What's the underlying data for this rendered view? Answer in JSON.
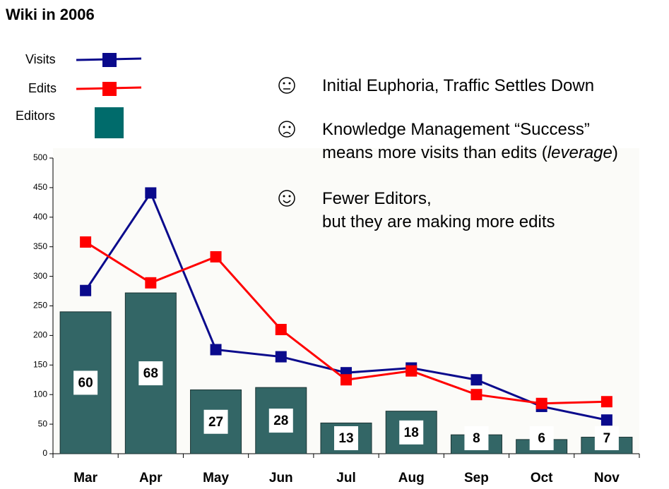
{
  "chart_data": {
    "type": "bar-line",
    "title": "Wiki in 2006",
    "categories": [
      "Mar",
      "Apr",
      "May",
      "Jun",
      "Jul",
      "Aug",
      "Sep",
      "Oct",
      "Nov"
    ],
    "series": [
      {
        "name": "Visits",
        "type": "line",
        "color": "#0a0a8c",
        "values": [
          276,
          441,
          176,
          164,
          137,
          145,
          125,
          80,
          57
        ]
      },
      {
        "name": "Edits",
        "type": "line",
        "color": "#ff0000",
        "values": [
          358,
          289,
          333,
          210,
          125,
          140,
          100,
          85,
          88
        ]
      },
      {
        "name": "Editors",
        "type": "bar",
        "axis": "y2",
        "color": "#336666",
        "values": [
          60,
          68,
          27,
          28,
          13,
          18,
          8,
          6,
          7
        ]
      }
    ],
    "ylim": [
      0,
      500
    ],
    "yticks": [
      0,
      50,
      100,
      150,
      200,
      250,
      300,
      350,
      400,
      450,
      500
    ],
    "y2lim": [
      0,
      125
    ],
    "annotations": [
      [
        [
          "Initial Euphoria, Traffic Settles Down"
        ]
      ],
      [
        [
          "Knowledge Management “Success”"
        ],
        [
          "means more visits than edits (",
          "leverage",
          ")"
        ]
      ],
      [
        [
          "Fewer Editors,"
        ],
        [
          "but they are making more edits"
        ]
      ]
    ]
  }
}
